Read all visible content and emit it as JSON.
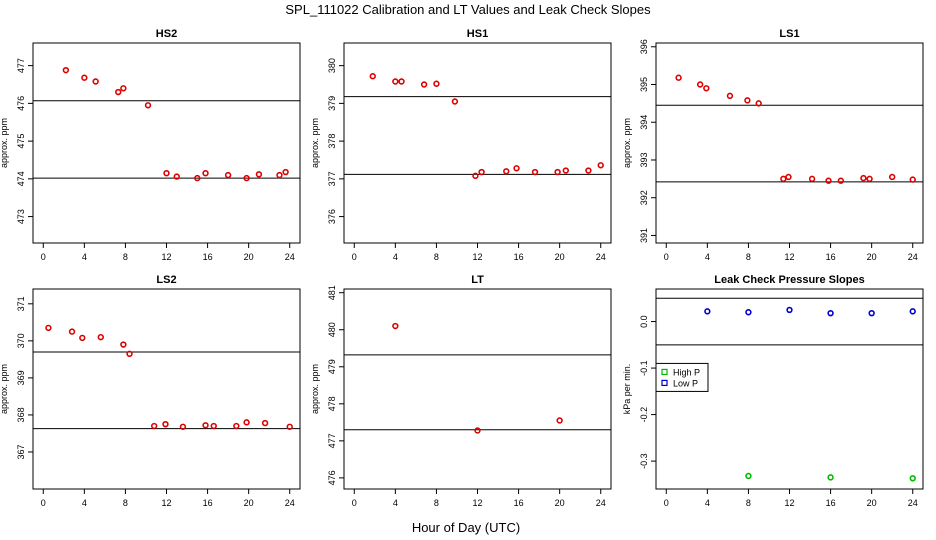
{
  "figure": {
    "title": "SPL_111022  Calibration and LT Values and Leak Check Slopes",
    "xlabel": "Hour of Day (UTC)"
  },
  "colors": {
    "calibration": "#dd0000",
    "high_p": "#00bb00",
    "low_p": "#0000cc",
    "axis": "#000000"
  },
  "chart_data": [
    {
      "type": "scatter",
      "title": "HS2",
      "xlabel": "",
      "ylabel": "approx. ppm",
      "xlim": [
        -1,
        25
      ],
      "ylim": [
        472.3,
        477.6
      ],
      "xticks": [
        0,
        4,
        8,
        12,
        16,
        20,
        24
      ],
      "yticks": [
        473,
        474,
        475,
        476,
        477
      ],
      "hlines": [
        476.07,
        474.02
      ],
      "series": [
        {
          "name": "calibration",
          "color": "#dd0000",
          "x": [
            2.2,
            4.0,
            5.1,
            7.3,
            7.8,
            10.2,
            12.0,
            13.0,
            15.0,
            15.8,
            18.0,
            19.8,
            21.0,
            23.0,
            23.6
          ],
          "y": [
            476.88,
            476.68,
            476.58,
            476.3,
            476.4,
            475.95,
            474.15,
            474.06,
            474.02,
            474.15,
            474.1,
            474.02,
            474.12,
            474.1,
            474.18
          ]
        }
      ]
    },
    {
      "type": "scatter",
      "title": "HS1",
      "xlabel": "",
      "ylabel": "approx. ppm",
      "xlim": [
        -1,
        25
      ],
      "ylim": [
        375.3,
        380.6
      ],
      "xticks": [
        0,
        4,
        8,
        12,
        16,
        20,
        24
      ],
      "yticks": [
        376,
        377,
        378,
        379,
        380
      ],
      "hlines": [
        379.18,
        377.12
      ],
      "series": [
        {
          "name": "calibration",
          "color": "#dd0000",
          "x": [
            1.8,
            4.0,
            4.6,
            6.8,
            8.0,
            9.8,
            11.8,
            12.4,
            14.8,
            15.8,
            17.6,
            19.8,
            20.6,
            22.8,
            24.0
          ],
          "y": [
            379.72,
            379.58,
            379.58,
            379.5,
            379.52,
            379.05,
            377.08,
            377.18,
            377.2,
            377.28,
            377.18,
            377.18,
            377.22,
            377.22,
            377.36
          ]
        }
      ]
    },
    {
      "type": "scatter",
      "title": "LS1",
      "xlabel": "",
      "ylabel": "approx. ppm",
      "xlim": [
        -1,
        25
      ],
      "ylim": [
        390.8,
        396.1
      ],
      "xticks": [
        0,
        4,
        8,
        12,
        16,
        20,
        24
      ],
      "yticks": [
        391,
        392,
        393,
        394,
        395,
        396
      ],
      "hlines": [
        394.45,
        392.42
      ],
      "series": [
        {
          "name": "calibration",
          "color": "#dd0000",
          "x": [
            1.2,
            3.3,
            3.9,
            6.2,
            7.9,
            9.0,
            11.4,
            11.9,
            14.2,
            15.8,
            17.0,
            19.2,
            19.8,
            22.0,
            24.0
          ],
          "y": [
            395.18,
            395.0,
            394.9,
            394.7,
            394.58,
            394.5,
            392.5,
            392.55,
            392.5,
            392.45,
            392.45,
            392.52,
            392.5,
            392.55,
            392.48
          ]
        }
      ]
    },
    {
      "type": "scatter",
      "title": "LS2",
      "xlabel": "",
      "ylabel": "approx. ppm",
      "xlim": [
        -1,
        25
      ],
      "ylim": [
        366.0,
        371.4
      ],
      "xticks": [
        0,
        4,
        8,
        12,
        16,
        20,
        24
      ],
      "yticks": [
        367,
        368,
        369,
        370,
        371
      ],
      "hlines": [
        369.7,
        367.63
      ],
      "series": [
        {
          "name": "calibration",
          "color": "#dd0000",
          "x": [
            0.5,
            2.8,
            3.8,
            5.6,
            7.8,
            8.4,
            10.8,
            11.9,
            13.6,
            15.8,
            16.6,
            18.8,
            19.8,
            21.6,
            24.0
          ],
          "y": [
            370.35,
            370.25,
            370.08,
            370.1,
            369.9,
            369.65,
            367.7,
            367.75,
            367.68,
            367.72,
            367.7,
            367.7,
            367.8,
            367.78,
            367.68
          ]
        }
      ]
    },
    {
      "type": "scatter",
      "title": "LT",
      "xlabel": "",
      "ylabel": "approx. ppm",
      "xlim": [
        -1,
        25
      ],
      "ylim": [
        475.7,
        481.1
      ],
      "xticks": [
        0,
        4,
        8,
        12,
        16,
        20,
        24
      ],
      "yticks": [
        476,
        477,
        478,
        479,
        480,
        481
      ],
      "hlines": [
        479.32,
        477.3
      ],
      "series": [
        {
          "name": "calibration",
          "color": "#dd0000",
          "x": [
            4.0,
            12.0,
            20.0
          ],
          "y": [
            480.1,
            477.28,
            477.55
          ]
        }
      ]
    },
    {
      "type": "scatter",
      "title": "Leak Check Pressure Slopes",
      "xlabel": "",
      "ylabel": "kPa per min.",
      "xlim": [
        -1,
        25
      ],
      "ylim": [
        -0.36,
        0.07
      ],
      "xticks": [
        0,
        4,
        8,
        12,
        16,
        20,
        24
      ],
      "yticks": [
        -0.3,
        -0.2,
        -0.1,
        0.0
      ],
      "ytick_labels": [
        "-0.3",
        "-0.2",
        "-0.1",
        "0.0"
      ],
      "hlines": [
        0.05,
        -0.05
      ],
      "legend": {
        "position": "left",
        "entries": [
          {
            "label": "High P",
            "color": "#00bb00"
          },
          {
            "label": "Low P",
            "color": "#0000cc"
          }
        ]
      },
      "series": [
        {
          "name": "High P",
          "color": "#00bb00",
          "x": [
            8,
            16,
            24
          ],
          "y": [
            -0.332,
            -0.335,
            -0.337
          ]
        },
        {
          "name": "Low P",
          "color": "#0000cc",
          "x": [
            4,
            8,
            12,
            16,
            20,
            24
          ],
          "y": [
            0.022,
            0.02,
            0.025,
            0.018,
            0.018,
            0.022
          ]
        }
      ]
    }
  ]
}
